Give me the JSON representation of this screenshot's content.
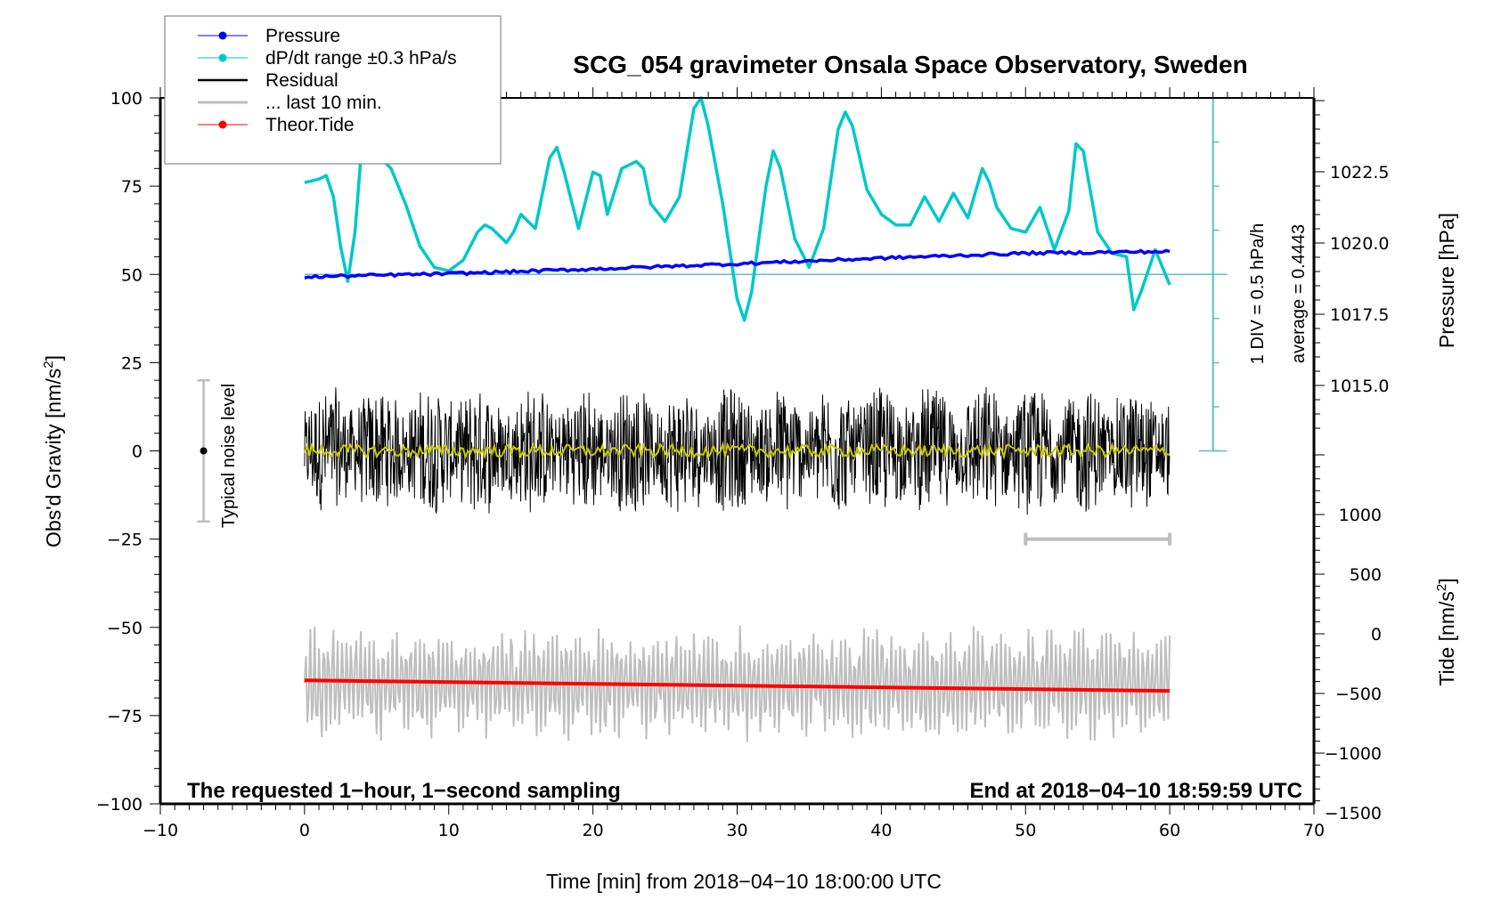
{
  "chart_data": {
    "type": "line",
    "title": "SCG_054 gravimeter Onsala Space Observatory, Sweden",
    "xlabel": "Time [min] from 2018−04−10 18:00:00 UTC",
    "ylabel": "Obs'd Gravity [nm/s",
    "ylabel_sup": "2",
    "ylabel_end": "]",
    "xlim": [
      -10,
      70
    ],
    "ylim": [
      -100,
      100
    ],
    "x_ticks": [
      -10,
      0,
      10,
      20,
      30,
      40,
      50,
      60,
      70
    ],
    "x_tick_labels": [
      "−10",
      "0",
      "10",
      "20",
      "30",
      "40",
      "50",
      "60",
      "70"
    ],
    "y_ticks": [
      100,
      75,
      50,
      25,
      0,
      -25,
      -50,
      -75,
      -100
    ],
    "y_tick_labels": [
      "100",
      "75",
      "50",
      "25",
      "0",
      "−25",
      "−50",
      "−75",
      "−100"
    ],
    "right_axis_pressure": {
      "label": "Pressure [hPa]",
      "ticks": [
        1022.5,
        1020.0,
        1017.5,
        1015.0
      ],
      "tick_labels": [
        "1022.5",
        "1020.0",
        "1017.5",
        "1015.0"
      ]
    },
    "right_axis_tide": {
      "label": "Tide [nm/s",
      "label_sup": "2",
      "label_end": "]",
      "ticks": [
        1000,
        500,
        0,
        -500,
        -1000,
        -1500
      ],
      "tick_labels": [
        "1000",
        "500",
        "0",
        "−500",
        "−1000",
        "−1500"
      ]
    },
    "legend": {
      "placement": "top-left",
      "entries": [
        {
          "label": "Pressure",
          "color": "#0000ff",
          "marker": true
        },
        {
          "label": "dP/dt range ±0.3 hPa/s",
          "color": "#00c8c8",
          "marker": true
        },
        {
          "label": "Residual",
          "color": "#000000",
          "marker": false
        },
        {
          "label": "... last 10 min.",
          "color": "#bebebe",
          "marker": false
        },
        {
          "label": "Theor.Tide",
          "color": "#ff0000",
          "marker": true
        }
      ]
    },
    "annotations": {
      "bottom_left": "The requested 1−hour, 1−second sampling",
      "bottom_right": "End at 2018−04−10 18:59:59 UTC",
      "scale_div": "1 DIV = 0.5 hPa/h",
      "scale_avg": "average = 0.4443",
      "noise_label": "Typical noise level"
    },
    "noise_bar": {
      "x": -7,
      "center": 0,
      "low": -20,
      "high": 20
    },
    "last10_bar": {
      "x_start": 50,
      "x_end": 60,
      "y": -25
    },
    "series": [
      {
        "name": "dP/dt",
        "color": "#00c8c8",
        "x": [
          0,
          1,
          1.5,
          2,
          2.5,
          3,
          3.5,
          4,
          5,
          6,
          7,
          8,
          9,
          10,
          11,
          12,
          12.5,
          13,
          14,
          14.5,
          15,
          16,
          17,
          17.5,
          18,
          19,
          20,
          20.5,
          21,
          22,
          23,
          23.5,
          24,
          25,
          26,
          27,
          27.5,
          28,
          29,
          30,
          30.5,
          31,
          32,
          32.5,
          33,
          34,
          35,
          36,
          37,
          37.5,
          38,
          39,
          40,
          41,
          42,
          42.5,
          43,
          44,
          45,
          46,
          47,
          47.5,
          48,
          49,
          50,
          51,
          52,
          53,
          53.5,
          54,
          55,
          56,
          57,
          57.5,
          58,
          59,
          60
        ],
        "y": [
          76,
          77,
          78,
          72,
          58,
          48,
          62,
          88,
          84,
          80,
          70,
          58,
          52,
          51,
          54,
          62,
          64,
          63,
          59,
          62,
          67,
          63,
          83,
          86,
          79,
          63,
          79,
          78,
          67,
          80,
          82,
          80,
          70,
          65,
          72,
          97,
          102,
          92,
          70,
          43,
          37,
          45,
          75,
          85,
          80,
          60,
          52,
          63,
          91,
          96,
          92,
          74,
          67,
          64,
          64,
          68,
          72,
          65,
          73,
          66,
          80,
          76,
          69,
          63,
          62,
          69,
          57,
          68,
          87,
          85,
          62,
          56,
          55,
          40,
          45,
          57,
          47
        ]
      },
      {
        "name": "Pressure",
        "color": "#0000ff",
        "x": [
          0,
          10,
          20,
          30,
          40,
          50,
          60
        ],
        "y": [
          49.3,
          50.2,
          51.5,
          53,
          54.6,
          56,
          56.5
        ]
      },
      {
        "name": "Residual",
        "color": "#000000",
        "x_range": [
          0,
          60
        ],
        "amplitude": 15,
        "peak_max": 33,
        "peak_min": -29
      },
      {
        "name": "Residual smoothed",
        "color": "#c8c800",
        "x": [
          0,
          60
        ],
        "y": [
          0,
          0
        ]
      },
      {
        "name": "last 10 min.",
        "color": "#bebebe",
        "x_range": [
          0,
          60
        ],
        "center": -66,
        "amplitude": 14,
        "peak_max": -30,
        "peak_min": -91
      },
      {
        "name": "Theor.Tide",
        "color": "#ff0000",
        "x": [
          0,
          60
        ],
        "y": [
          -65,
          -68
        ]
      }
    ],
    "dpdt_scale_bar": {
      "x": 63,
      "zero_y": 0,
      "baseline_y": 50,
      "top_y": 100
    }
  }
}
